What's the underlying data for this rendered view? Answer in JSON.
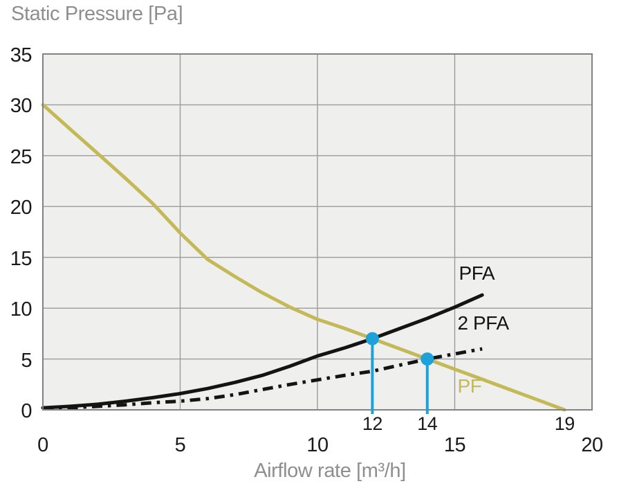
{
  "chart_data": {
    "type": "line",
    "title": "Static Pressure [Pa]",
    "xlabel": "Airflow rate [m³/h]",
    "ylabel": "Static Pressure [Pa]",
    "xlim": [
      0,
      20
    ],
    "ylim": [
      0,
      35
    ],
    "x_ticks": [
      0,
      5,
      10,
      15,
      20
    ],
    "y_ticks": [
      35,
      30,
      25,
      20,
      15,
      10,
      5,
      0
    ],
    "grid": true,
    "legend_position": "inline-curve-labels",
    "series": [
      {
        "name": "PF",
        "color": "#c4b957",
        "line_style": "solid",
        "label_at": [
          15.1,
          2.35
        ],
        "x": [
          0,
          1,
          2,
          3,
          4,
          5,
          6,
          7,
          8,
          9,
          10,
          11,
          12,
          13,
          14,
          15,
          16,
          17,
          18,
          19
        ],
        "y": [
          30,
          27.6,
          25.2,
          22.8,
          20.3,
          17.4,
          14.8,
          13.1,
          11.5,
          10.1,
          8.9,
          8.0,
          7.0,
          6.0,
          5.0,
          4.0,
          3.0,
          2.0,
          1.0,
          0
        ]
      },
      {
        "name": "PFA",
        "color": "#141414",
        "line_style": "solid",
        "label_at": [
          15.15,
          13.5
        ],
        "x": [
          0,
          1,
          2,
          3,
          4,
          5,
          6,
          7,
          8,
          9,
          10,
          11,
          12,
          13,
          14,
          15,
          16
        ],
        "y": [
          0.2,
          0.35,
          0.55,
          0.85,
          1.2,
          1.6,
          2.1,
          2.7,
          3.4,
          4.3,
          5.3,
          6.1,
          7.0,
          8.0,
          9.0,
          10.1,
          11.3
        ]
      },
      {
        "name": "2 PFA",
        "color": "#141414",
        "line_style": "dashdot",
        "label_at": [
          15.1,
          8.6
        ],
        "x": [
          0,
          1,
          2,
          3,
          4,
          5,
          6,
          7,
          8,
          9,
          10,
          11,
          12,
          13,
          14,
          15,
          16
        ],
        "y": [
          0.1,
          0.2,
          0.35,
          0.5,
          0.7,
          0.85,
          1.1,
          1.5,
          2.0,
          2.5,
          2.95,
          3.4,
          3.8,
          4.4,
          5.0,
          5.5,
          6.0
        ]
      }
    ],
    "operating_points": [
      {
        "x": 12,
        "y": 7,
        "label": "12"
      },
      {
        "x": 14,
        "y": 5,
        "label": "14"
      }
    ],
    "axis_annotations": [
      {
        "x": 19,
        "label": "19"
      }
    ],
    "marker_color": "#1ea1d8"
  },
  "colors": {
    "background": "#ffffff",
    "plot_background": "#efefee",
    "grid": "#9b9b9b",
    "plot_border": "#828282",
    "axis_text": "#1a1a1a",
    "muted_text": "#8e8e8e"
  }
}
